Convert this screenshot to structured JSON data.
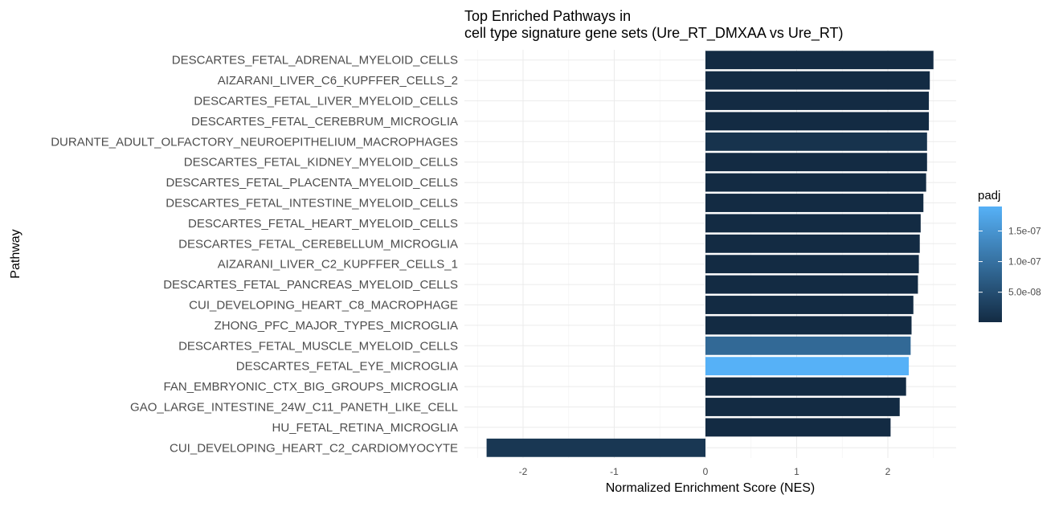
{
  "chart_data": {
    "type": "bar",
    "orientation": "horizontal",
    "title_line1": "Top Enriched Pathways in",
    "title_line2": "cell type signature gene sets (Ure_RT_DMXAA vs Ure_RT)",
    "xlabel": "Normalized Enrichment Score (NES)",
    "ylabel": "Pathway",
    "xlim": [
      -2.5,
      2.75
    ],
    "xticks": [
      -2,
      -1,
      0,
      1,
      2
    ],
    "grid": true,
    "categories": [
      "DESCARTES_FETAL_ADRENAL_MYELOID_CELLS",
      "AIZARANI_LIVER_C6_KUPFFER_CELLS_2",
      "DESCARTES_FETAL_LIVER_MYELOID_CELLS",
      "DESCARTES_FETAL_CEREBRUM_MICROGLIA",
      "DURANTE_ADULT_OLFACTORY_NEUROEPITHELIUM_MACROPHAGES",
      "DESCARTES_FETAL_KIDNEY_MYELOID_CELLS",
      "DESCARTES_FETAL_PLACENTA_MYELOID_CELLS",
      "DESCARTES_FETAL_INTESTINE_MYELOID_CELLS",
      "DESCARTES_FETAL_HEART_MYELOID_CELLS",
      "DESCARTES_FETAL_CEREBELLUM_MICROGLIA",
      "AIZARANI_LIVER_C2_KUPFFER_CELLS_1",
      "DESCARTES_FETAL_PANCREAS_MYELOID_CELLS",
      "CUI_DEVELOPING_HEART_C8_MACROPHAGE",
      "ZHONG_PFC_MAJOR_TYPES_MICROGLIA",
      "DESCARTES_FETAL_MUSCLE_MYELOID_CELLS",
      "DESCARTES_FETAL_EYE_MICROGLIA",
      "FAN_EMBRYONIC_CTX_BIG_GROUPS_MICROGLIA",
      "GAO_LARGE_INTESTINE_24W_C11_PANETH_LIKE_CELL",
      "HU_FETAL_RETINA_MICROGLIA",
      "CUI_DEVELOPING_HEART_C2_CARDIOMYOCYTE"
    ],
    "values": [
      2.5,
      2.46,
      2.45,
      2.45,
      2.43,
      2.43,
      2.42,
      2.39,
      2.36,
      2.35,
      2.34,
      2.33,
      2.28,
      2.26,
      2.25,
      2.23,
      2.2,
      2.13,
      2.03,
      -2.4
    ],
    "padj": [
      1e-09,
      1e-09,
      1e-09,
      1e-09,
      1.2e-08,
      1e-09,
      1e-09,
      1e-09,
      1e-09,
      1e-09,
      1e-09,
      1e-09,
      1e-09,
      1e-09,
      8.8e-08,
      1.9e-07,
      1e-09,
      1e-09,
      1e-09,
      1.8e-08
    ],
    "legend": {
      "title": "padj",
      "position": "right",
      "tick_values": [
        5e-08,
        1e-07,
        1.5e-07
      ],
      "tick_labels": [
        "5.0e-08",
        "1.0e-07",
        "1.5e-07"
      ],
      "range": [
        1e-09,
        1.9e-07
      ],
      "color_low": "#132b43",
      "color_high": "#56b1f7"
    }
  }
}
